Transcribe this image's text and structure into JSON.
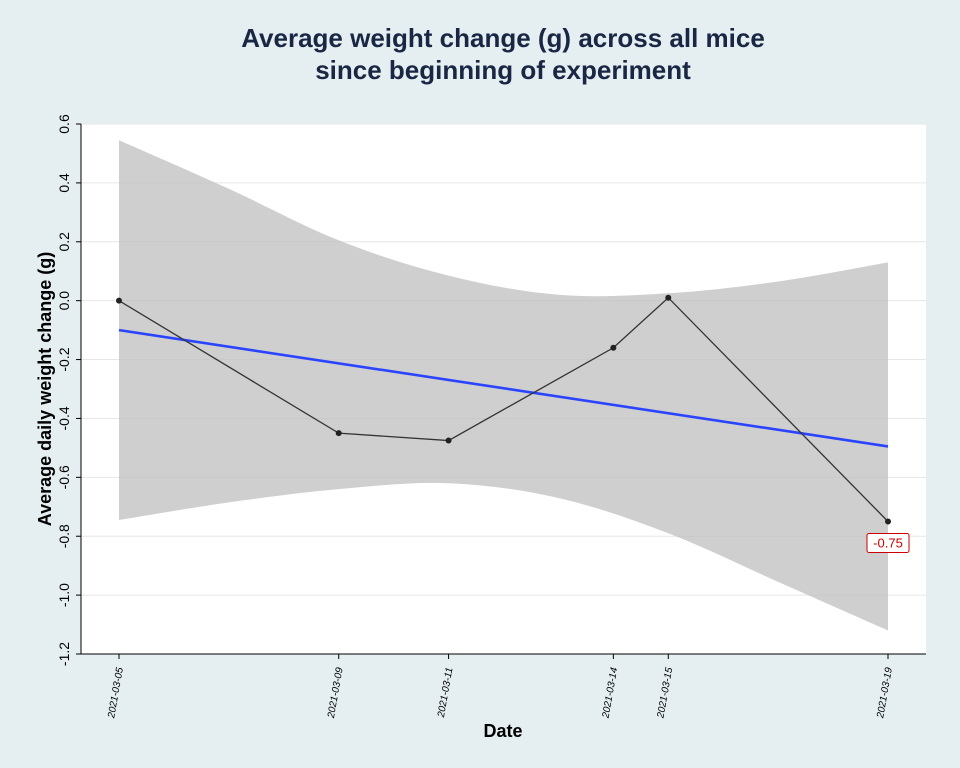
{
  "chart_data": {
    "type": "line",
    "title_lines": [
      "Average weight change (g) across all mice",
      "since beginning of experiment"
    ],
    "xlabel": "Date",
    "ylabel": "Average daily weight change (g)",
    "x": [
      "2021-03-05",
      "2021-03-09",
      "2021-03-11",
      "2021-03-14",
      "2021-03-15",
      "2021-03-19"
    ],
    "x_range": [
      "2021-03-05",
      "2021-03-19"
    ],
    "ylim": [
      -1.2,
      0.6
    ],
    "yticks": [
      "-1.2",
      "-1.0",
      "-0.8",
      "-0.6",
      "-0.4",
      "-0.2",
      "0.0",
      "0.2",
      "0.4",
      "0.6"
    ],
    "grid": true,
    "series": [
      {
        "type": "line",
        "values": [
          0.0,
          -0.45,
          -0.475,
          -0.16,
          0.01,
          -0.75
        ],
        "color": "#333333"
      },
      {
        "type": "fit",
        "x": [
          "2021-03-05",
          "2021-03-19"
        ],
        "values": [
          -0.1,
          -0.495
        ],
        "color": "#2a44ff"
      }
    ],
    "confidence_band": {
      "color": "#bfbfbf",
      "x": [
        "2021-03-05",
        "2021-03-07",
        "2021-03-09",
        "2021-03-11",
        "2021-03-13",
        "2021-03-15",
        "2021-03-17",
        "2021-03-19"
      ],
      "upper": [
        0.545,
        0.38,
        0.205,
        0.085,
        0.02,
        0.025,
        0.065,
        0.13
      ],
      "lower": [
        -0.745,
        -0.685,
        -0.64,
        -0.62,
        -0.67,
        -0.79,
        -0.955,
        -1.12
      ]
    },
    "annotation": {
      "x": "2021-03-19",
      "y": -0.75,
      "label": "-0.75",
      "color": "#cc0000"
    }
  }
}
